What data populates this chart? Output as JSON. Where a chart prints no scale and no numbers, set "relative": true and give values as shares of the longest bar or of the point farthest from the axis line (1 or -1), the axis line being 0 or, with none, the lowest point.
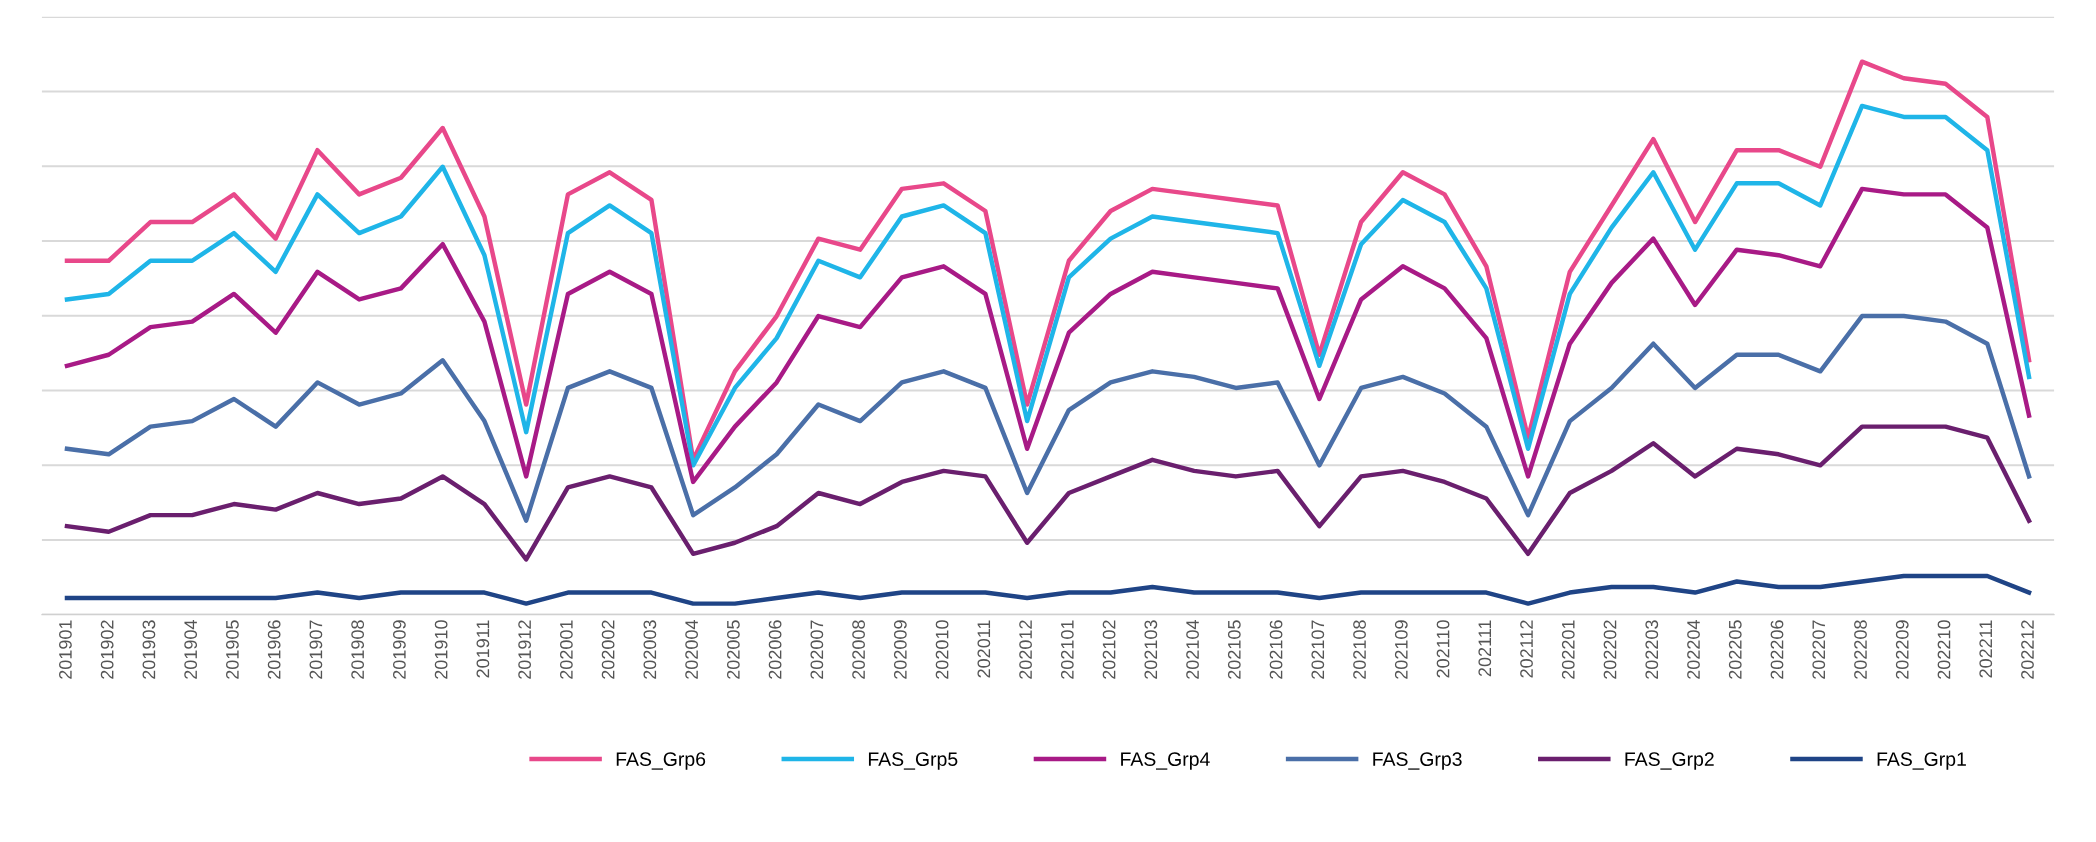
{
  "chart_data": {
    "type": "line",
    "relative": true,
    "grid": "y",
    "legend": "bottom",
    "marker": "none",
    "line_style": "solid",
    "categories": [
      "201901",
      "201902",
      "201903",
      "201904",
      "201905",
      "201906",
      "201907",
      "201908",
      "201909",
      "201910",
      "201911",
      "201912",
      "202001",
      "202002",
      "202003",
      "202004",
      "202005",
      "202006",
      "202007",
      "202008",
      "202009",
      "202010",
      "202011",
      "202012",
      "202101",
      "202102",
      "202103",
      "202104",
      "202105",
      "202106",
      "202107",
      "202108",
      "202109",
      "202110",
      "202111",
      "202112",
      "202201",
      "202202",
      "202203",
      "202204",
      "202205",
      "202206",
      "202207",
      "202208",
      "202209",
      "202210",
      "202211",
      "202212"
    ],
    "series": [
      {
        "name": "FAS_Grp6",
        "color": "#e8488a",
        "values": [
          0.64,
          0.64,
          0.71,
          0.71,
          0.76,
          0.68,
          0.84,
          0.76,
          0.79,
          0.88,
          0.72,
          0.38,
          0.76,
          0.8,
          0.75,
          0.28,
          0.44,
          0.54,
          0.68,
          0.66,
          0.77,
          0.78,
          0.73,
          0.38,
          0.64,
          0.73,
          0.77,
          0.76,
          0.75,
          0.74,
          0.47,
          0.71,
          0.8,
          0.76,
          0.63,
          0.32,
          0.62,
          0.74,
          0.86,
          0.71,
          0.84,
          0.84,
          0.81,
          1.0,
          0.97,
          0.96,
          0.9,
          0.46
        ]
      },
      {
        "name": "FAS_Grp5",
        "color": "#1fb5e8",
        "values": [
          0.57,
          0.58,
          0.64,
          0.64,
          0.69,
          0.62,
          0.76,
          0.69,
          0.72,
          0.81,
          0.65,
          0.33,
          0.69,
          0.74,
          0.69,
          0.27,
          0.41,
          0.5,
          0.64,
          0.61,
          0.72,
          0.74,
          0.69,
          0.35,
          0.61,
          0.68,
          0.72,
          0.71,
          0.7,
          0.69,
          0.45,
          0.67,
          0.75,
          0.71,
          0.59,
          0.3,
          0.58,
          0.7,
          0.8,
          0.66,
          0.78,
          0.78,
          0.74,
          0.92,
          0.9,
          0.9,
          0.84,
          0.43
        ]
      },
      {
        "name": "FAS_Grp4",
        "color": "#a81a86",
        "values": [
          0.45,
          0.47,
          0.52,
          0.53,
          0.58,
          0.51,
          0.62,
          0.57,
          0.59,
          0.67,
          0.53,
          0.25,
          0.58,
          0.62,
          0.58,
          0.24,
          0.34,
          0.42,
          0.54,
          0.52,
          0.61,
          0.63,
          0.58,
          0.3,
          0.51,
          0.58,
          0.62,
          0.61,
          0.6,
          0.59,
          0.39,
          0.57,
          0.63,
          0.59,
          0.5,
          0.25,
          0.49,
          0.6,
          0.68,
          0.56,
          0.66,
          0.65,
          0.63,
          0.77,
          0.76,
          0.76,
          0.7,
          0.36
        ]
      },
      {
        "name": "FAS_Grp3",
        "color": "#4a6fa8",
        "values": [
          0.3,
          0.29,
          0.34,
          0.35,
          0.39,
          0.34,
          0.42,
          0.38,
          0.4,
          0.46,
          0.35,
          0.17,
          0.41,
          0.44,
          0.41,
          0.18,
          0.23,
          0.29,
          0.38,
          0.35,
          0.42,
          0.44,
          0.41,
          0.22,
          0.37,
          0.42,
          0.44,
          0.43,
          0.41,
          0.42,
          0.27,
          0.41,
          0.43,
          0.4,
          0.34,
          0.18,
          0.35,
          0.41,
          0.49,
          0.41,
          0.47,
          0.47,
          0.44,
          0.54,
          0.54,
          0.53,
          0.49,
          0.25
        ]
      },
      {
        "name": "FAS_Grp2",
        "color": "#6a1f6e",
        "values": [
          0.16,
          0.15,
          0.18,
          0.18,
          0.2,
          0.19,
          0.22,
          0.2,
          0.21,
          0.25,
          0.2,
          0.1,
          0.23,
          0.25,
          0.23,
          0.11,
          0.13,
          0.16,
          0.22,
          0.2,
          0.24,
          0.26,
          0.25,
          0.13,
          0.22,
          0.25,
          0.28,
          0.26,
          0.25,
          0.26,
          0.16,
          0.25,
          0.26,
          0.24,
          0.21,
          0.11,
          0.22,
          0.26,
          0.31,
          0.25,
          0.3,
          0.29,
          0.27,
          0.34,
          0.34,
          0.34,
          0.32,
          0.17
        ]
      },
      {
        "name": "FAS_Grp1",
        "color": "#1f4486",
        "values": [
          0.03,
          0.03,
          0.03,
          0.03,
          0.03,
          0.03,
          0.04,
          0.03,
          0.04,
          0.04,
          0.04,
          0.02,
          0.04,
          0.04,
          0.04,
          0.02,
          0.02,
          0.03,
          0.04,
          0.03,
          0.04,
          0.04,
          0.04,
          0.03,
          0.04,
          0.04,
          0.05,
          0.04,
          0.04,
          0.04,
          0.03,
          0.04,
          0.04,
          0.04,
          0.04,
          0.02,
          0.04,
          0.05,
          0.05,
          0.04,
          0.06,
          0.05,
          0.05,
          0.06,
          0.07,
          0.07,
          0.07,
          0.04
        ]
      }
    ]
  }
}
